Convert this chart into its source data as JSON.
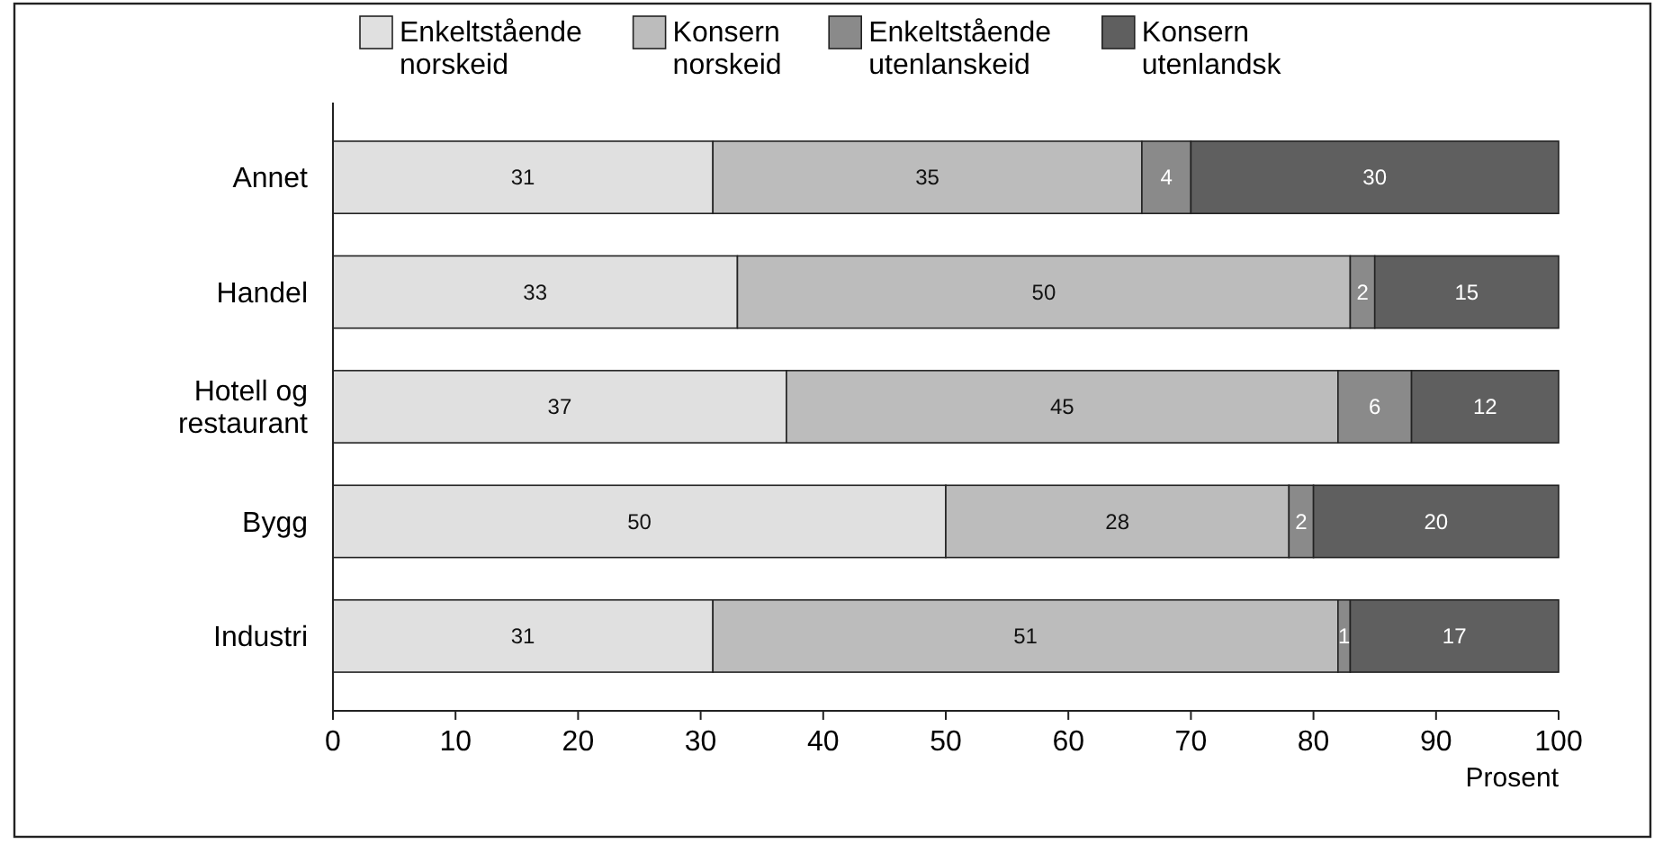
{
  "chart_data": {
    "type": "bar",
    "orientation": "horizontal",
    "stacked": true,
    "xlabel": "Prosent",
    "categories": [
      "Annet",
      "Handel",
      "Hotell og restaurant",
      "Bygg",
      "Industri"
    ],
    "series": [
      {
        "name": "Enkeltstående norskeid",
        "color": "#e0e0e0",
        "values": [
          31,
          33,
          37,
          50,
          31
        ]
      },
      {
        "name": "Konsern norskeid",
        "color": "#bcbcbc",
        "values": [
          35,
          50,
          45,
          28,
          51
        ]
      },
      {
        "name": "Enkeltstående utenlanskeid",
        "color": "#8a8a8a",
        "values": [
          4,
          2,
          6,
          2,
          1
        ]
      },
      {
        "name": "Konsern utenlandsk",
        "color": "#5f5f5f",
        "values": [
          30,
          15,
          12,
          20,
          17
        ]
      }
    ],
    "xlim": [
      0,
      100
    ],
    "xticks": [
      0,
      10,
      20,
      30,
      40,
      50,
      60,
      70,
      80,
      90,
      100
    ],
    "data_labels": true,
    "legend": "top",
    "grid": false
  }
}
